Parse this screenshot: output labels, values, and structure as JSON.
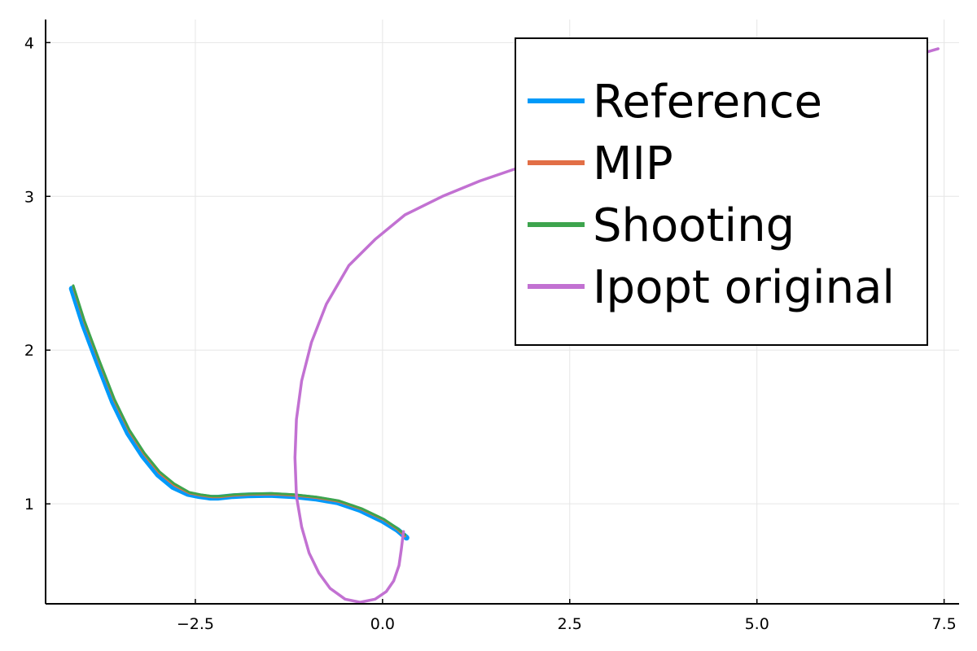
{
  "chart_data": {
    "type": "line",
    "title": "",
    "xlabel": "",
    "ylabel": "",
    "xlim": [
      -4.5,
      7.7
    ],
    "ylim": [
      0.35,
      4.15
    ],
    "xticks": [
      -2.5,
      0.0,
      2.5,
      5.0,
      7.5
    ],
    "xtick_labels": [
      "−2.5",
      "0.0",
      "2.5",
      "5.0",
      "7.5"
    ],
    "yticks": [
      1,
      2,
      3,
      4
    ],
    "ytick_labels": [
      "1",
      "2",
      "3",
      "4"
    ],
    "grid": true,
    "legend_position": "top-right",
    "series": [
      {
        "name": "Reference",
        "color": "#009af9",
        "width": 7,
        "x": [
          -4.15,
          -4.0,
          -3.8,
          -3.6,
          -3.4,
          -3.2,
          -3.0,
          -2.8,
          -2.6,
          -2.45,
          -2.3,
          -2.2,
          -2.0,
          -1.8,
          -1.5,
          -1.2,
          -0.9,
          -0.6,
          -0.3,
          0.0,
          0.2,
          0.32
        ],
        "y": [
          2.4,
          2.17,
          1.91,
          1.66,
          1.46,
          1.31,
          1.19,
          1.11,
          1.065,
          1.05,
          1.04,
          1.04,
          1.05,
          1.055,
          1.058,
          1.05,
          1.035,
          1.01,
          0.96,
          0.89,
          0.83,
          0.78
        ]
      },
      {
        "name": "MIP",
        "color": "#e26f46",
        "width": 3,
        "x": [
          -4.13,
          -3.98,
          -3.78,
          -3.58,
          -3.38,
          -3.18,
          -2.98,
          -2.78,
          -2.58,
          -2.43,
          -2.28,
          -2.18,
          -1.98,
          -1.78,
          -1.48,
          -1.18,
          -0.88,
          -0.58,
          -0.28,
          0.02,
          0.2,
          0.3
        ],
        "y": [
          2.41,
          2.18,
          1.92,
          1.67,
          1.47,
          1.32,
          1.2,
          1.12,
          1.07,
          1.055,
          1.045,
          1.045,
          1.055,
          1.06,
          1.063,
          1.055,
          1.04,
          1.015,
          0.965,
          0.895,
          0.835,
          0.79
        ]
      },
      {
        "name": "Shooting",
        "color": "#3da44d",
        "width": 3,
        "x": [
          -4.13,
          -3.98,
          -3.78,
          -3.58,
          -3.38,
          -3.18,
          -2.98,
          -2.78,
          -2.58,
          -2.43,
          -2.28,
          -2.18,
          -1.98,
          -1.78,
          -1.48,
          -1.18,
          -0.88,
          -0.58,
          -0.28,
          0.02,
          0.2,
          0.3
        ],
        "y": [
          2.42,
          2.19,
          1.93,
          1.68,
          1.48,
          1.33,
          1.21,
          1.13,
          1.075,
          1.06,
          1.05,
          1.05,
          1.06,
          1.065,
          1.068,
          1.06,
          1.045,
          1.02,
          0.97,
          0.9,
          0.84,
          0.8
        ]
      },
      {
        "name": "Ipopt original",
        "color": "#c271d2",
        "width": 3.5,
        "x": [
          0.28,
          0.25,
          0.22,
          0.15,
          0.05,
          -0.1,
          -0.3,
          -0.5,
          -0.7,
          -0.85,
          -0.98,
          -1.08,
          -1.15,
          -1.17,
          -1.15,
          -1.08,
          -0.95,
          -0.75,
          -0.45,
          -0.1,
          0.3,
          0.8,
          1.3,
          1.9,
          2.6,
          3.5,
          4.4,
          5.3,
          6.2,
          7.0,
          7.42
        ],
        "y": [
          0.82,
          0.7,
          0.6,
          0.5,
          0.43,
          0.38,
          0.36,
          0.38,
          0.45,
          0.55,
          0.68,
          0.85,
          1.05,
          1.3,
          1.55,
          1.8,
          2.05,
          2.3,
          2.55,
          2.72,
          2.88,
          3.0,
          3.1,
          3.2,
          3.3,
          3.4,
          3.52,
          3.65,
          3.78,
          3.9,
          3.96
        ]
      }
    ]
  }
}
